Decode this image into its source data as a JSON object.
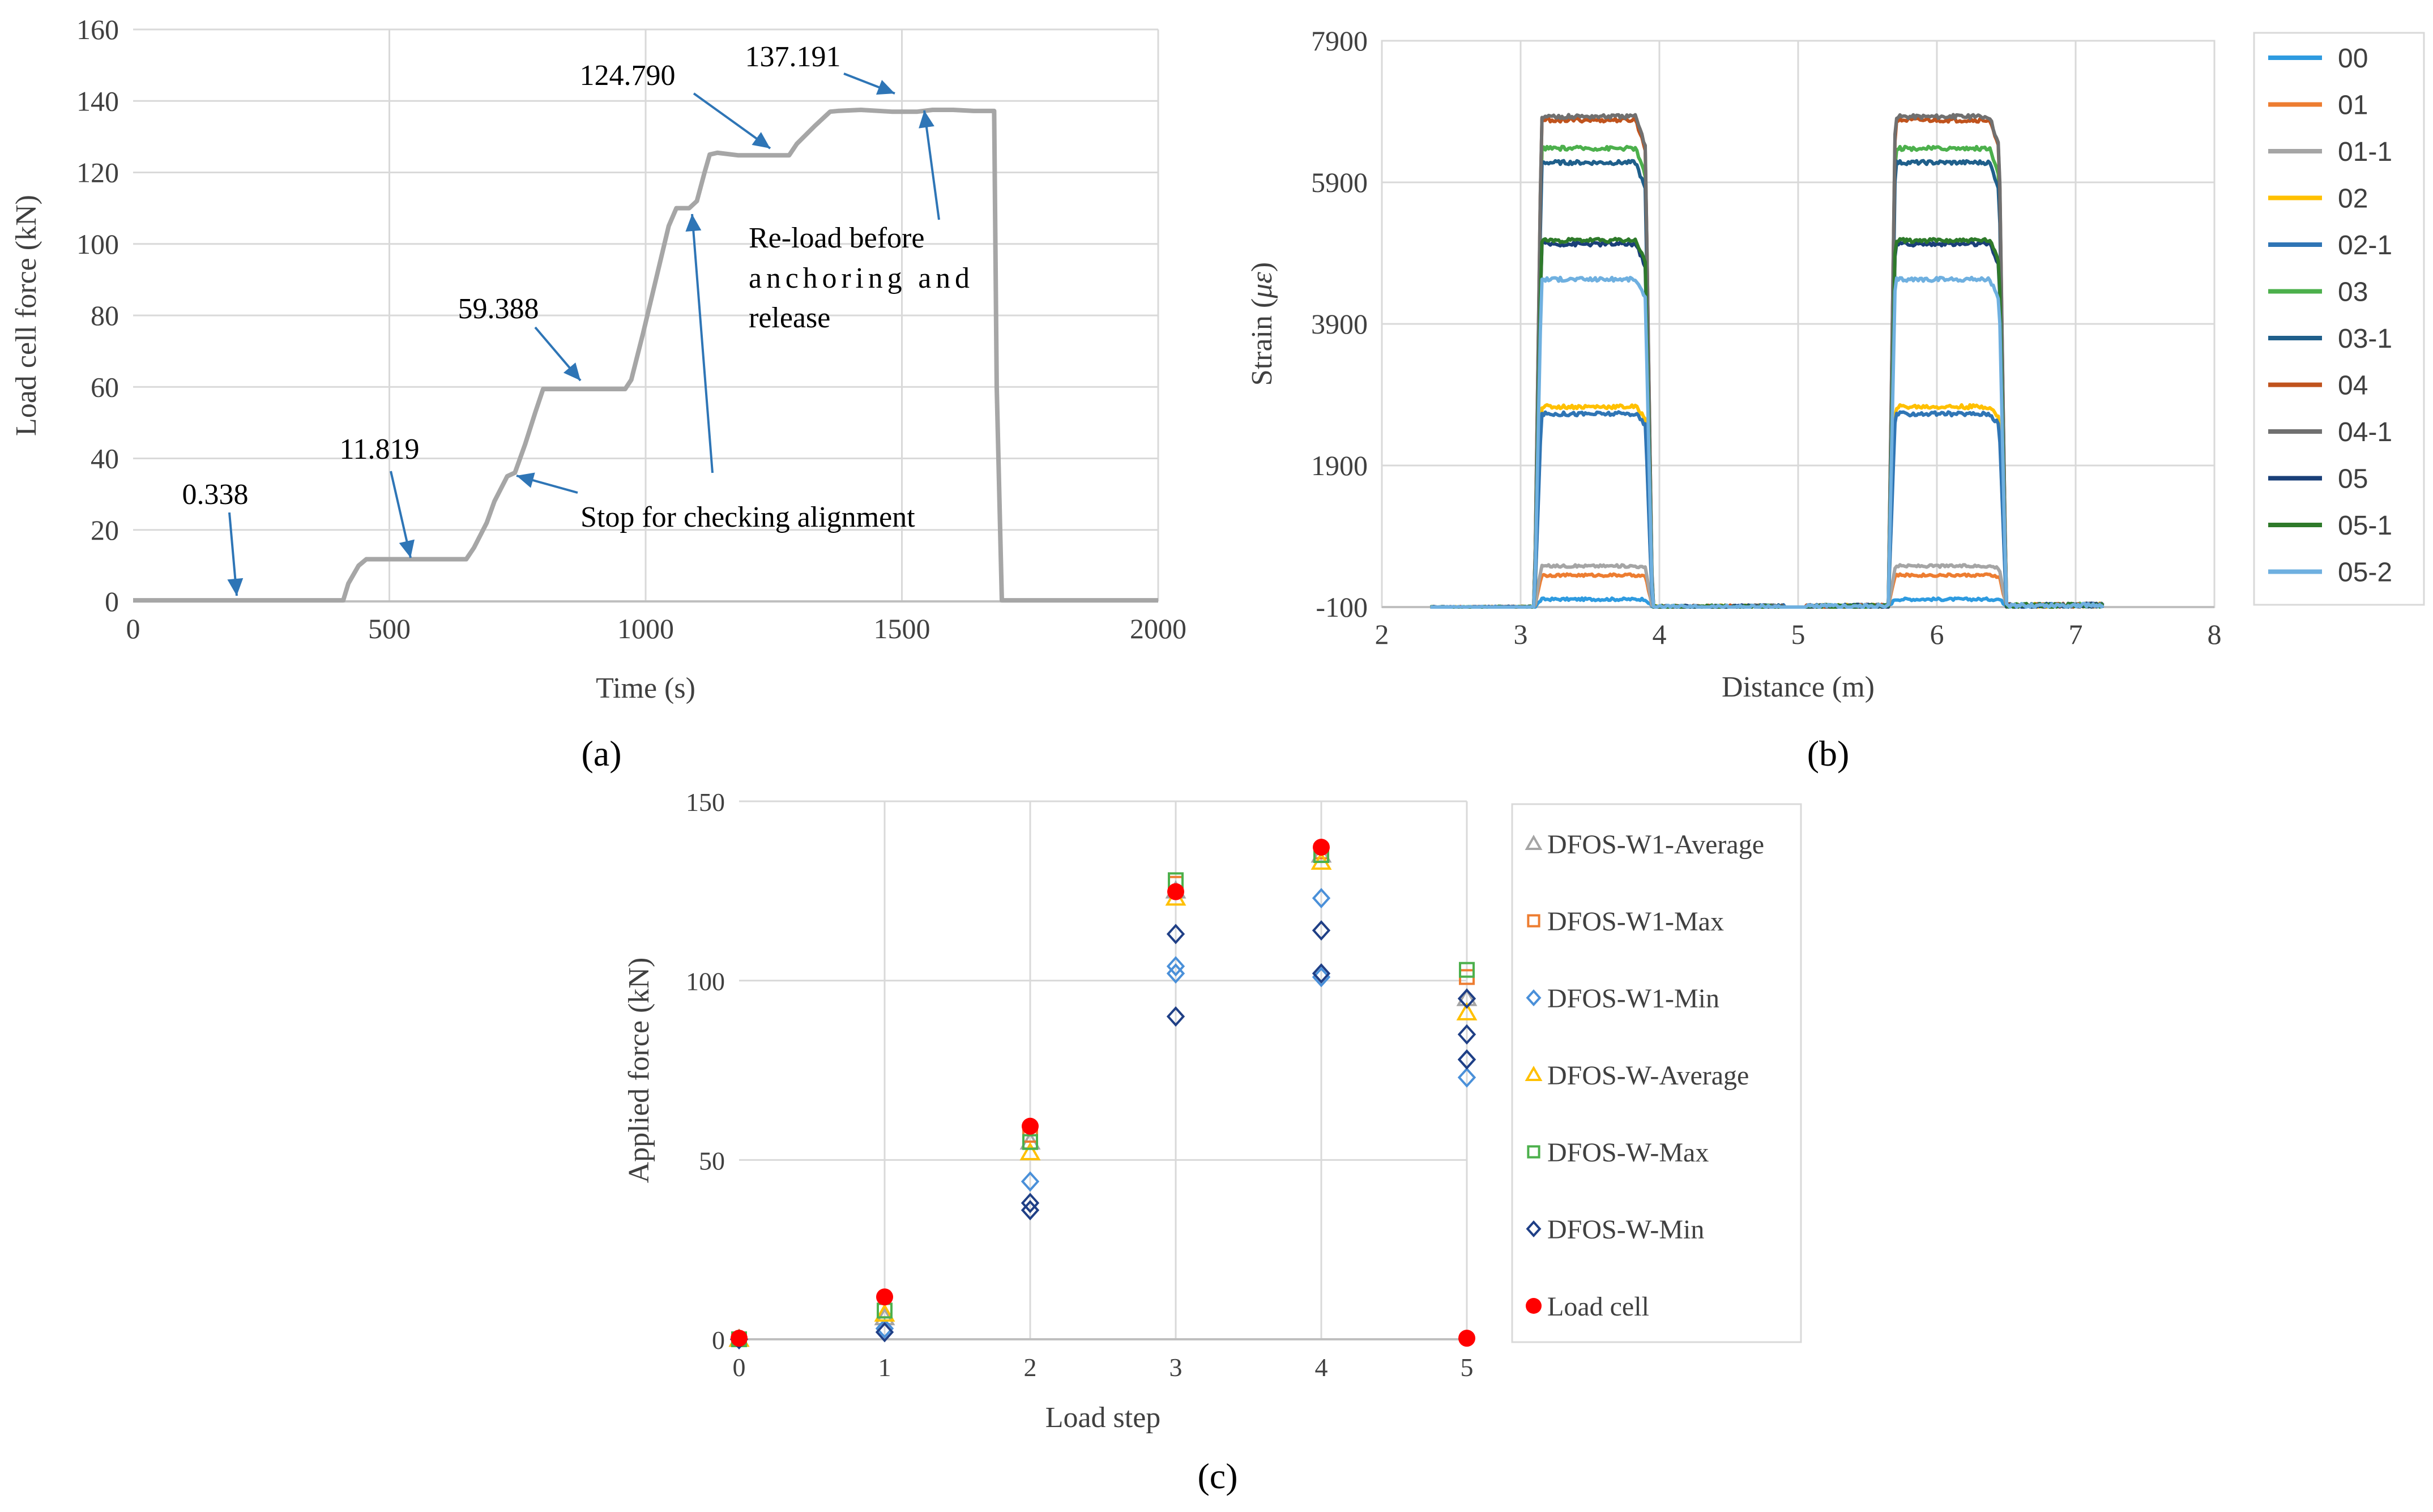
{
  "colors": {
    "grid": "#d9d9d9",
    "axis": "#bfbfbf",
    "text": "#404040",
    "gray_line": "#a6a6a6",
    "arrow": "#2e75b6",
    "legend_border": "#d9d9d9"
  },
  "chart_data": [
    {
      "id": "a",
      "type": "line",
      "panel_label": "(a)",
      "xlabel": "Time (s)",
      "ylabel": "Load cell force (kN)",
      "xlim": [
        0,
        2000
      ],
      "ylim": [
        0,
        160
      ],
      "xticks": [
        0,
        500,
        1000,
        1500,
        2000
      ],
      "yticks": [
        0,
        20,
        40,
        60,
        80,
        100,
        120,
        140,
        160
      ],
      "grid": true,
      "series": [
        {
          "name": "Load cell",
          "color": "#a6a6a6",
          "x": [
            0,
            410,
            420,
            440,
            455,
            650,
            665,
            690,
            705,
            730,
            745,
            765,
            785,
            800,
            960,
            972,
            995,
            1020,
            1045,
            1060,
            1070,
            1085,
            1100,
            1115,
            1125,
            1140,
            1180,
            1280,
            1295,
            1330,
            1360,
            1375,
            1420,
            1480,
            1530,
            1560,
            1600,
            1640,
            1680,
            1685,
            1695,
            2000
          ],
          "y": [
            0.3,
            0.3,
            5,
            10,
            11.8,
            11.8,
            15,
            22,
            28,
            35,
            36,
            44,
            53,
            59.4,
            59.4,
            62,
            75,
            90,
            105,
            110,
            110,
            110,
            112,
            120,
            125,
            125.5,
            124.8,
            124.8,
            128,
            133,
            137,
            137.2,
            137.5,
            137,
            137,
            137.5,
            137.5,
            137.2,
            137.2,
            60,
            0.3,
            0.3
          ]
        }
      ],
      "value_labels": [
        {
          "text": "0.338",
          "x": 200,
          "y": 0.338
        },
        {
          "text": "11.819",
          "x": 540,
          "y": 11.819
        },
        {
          "text": "59.388",
          "x": 880,
          "y": 59.388
        },
        {
          "text": "124.790",
          "x": 1170,
          "y": 124.79
        },
        {
          "text": "137.191",
          "x": 1420,
          "y": 137.191
        }
      ],
      "annotations": [
        {
          "text": "Stop for checking alignment",
          "targets": [
            [
              760,
              35
            ],
            [
              1100,
              110
            ]
          ]
        },
        {
          "text": "Re-load before",
          "line": 1
        },
        {
          "text": "anchoring and",
          "line": 2
        },
        {
          "text": "release",
          "line": 3
        }
      ],
      "reload_target": [
        1550,
        137.5
      ]
    },
    {
      "id": "b",
      "type": "line",
      "panel_label": "(b)",
      "xlabel": "Distance (m)",
      "ylabel": "Strain (με)",
      "ylabel_parts": [
        "Strain (",
        "με",
        ")"
      ],
      "xlim": [
        2,
        8
      ],
      "ylim": [
        -100,
        7900
      ],
      "xticks": [
        2,
        3,
        4,
        5,
        6,
        7,
        8
      ],
      "yticks": [
        -100,
        1900,
        3900,
        5900,
        7900
      ],
      "grid": true,
      "x_start": 2.35,
      "x_end": 7.2,
      "segments": [
        [
          3.1,
          3.95
        ],
        [
          5.65,
          6.5
        ]
      ],
      "series": [
        {
          "name": "00",
          "color": "#2e9be0",
          "plateau": -20
        },
        {
          "name": "01",
          "color": "#ed7d31",
          "plateau": 320
        },
        {
          "name": "01-1",
          "color": "#a5a5a5",
          "plateau": 450
        },
        {
          "name": "02",
          "color": "#ffc000",
          "plateau": 2700
        },
        {
          "name": "02-1",
          "color": "#2f75b5",
          "plateau": 2600
        },
        {
          "name": "03",
          "color": "#4cb04c",
          "plateau": 6350
        },
        {
          "name": "03-1",
          "color": "#1f5f8b",
          "plateau": 6150
        },
        {
          "name": "04",
          "color": "#c0531d",
          "plateau": 6750
        },
        {
          "name": "04-1",
          "color": "#707070",
          "plateau": 6800
        },
        {
          "name": "05",
          "color": "#1a3f78",
          "plateau": 5000
        },
        {
          "name": "05-1",
          "color": "#2e7a2a",
          "plateau": 5050
        },
        {
          "name": "05-2",
          "color": "#6fb0e0",
          "plateau": 4500
        }
      ]
    },
    {
      "id": "c",
      "type": "scatter",
      "panel_label": "(c)",
      "xlabel": "Load step",
      "ylabel": "Applied force (kN)",
      "xlim": [
        0,
        5
      ],
      "ylim": [
        0,
        150
      ],
      "xticks": [
        0,
        1,
        2,
        3,
        4,
        5
      ],
      "yticks": [
        0,
        50,
        100,
        150
      ],
      "grid": true,
      "series": [
        {
          "name": "DFOS-W1-Average",
          "marker": "triangle",
          "color": "#a5a5a5",
          "x": [
            0,
            1,
            2,
            3,
            4,
            5
          ],
          "y": [
            0,
            6,
            55,
            125,
            135,
            95
          ]
        },
        {
          "name": "DFOS-W1-Max",
          "marker": "square",
          "color": "#ed7d31",
          "x": [
            0,
            1,
            2,
            3,
            4,
            5
          ],
          "y": [
            0,
            8,
            57,
            127,
            136,
            101
          ]
        },
        {
          "name": "DFOS-W1-Min",
          "marker": "diamond",
          "color": "#4a90d9",
          "x": [
            0,
            1,
            2,
            3,
            3,
            4,
            4,
            5,
            5
          ],
          "y": [
            0,
            3,
            44,
            102,
            104,
            123,
            101,
            73,
            78
          ]
        },
        {
          "name": "DFOS-W-Average",
          "marker": "triangle",
          "color": "#ffc000",
          "x": [
            0,
            1,
            2,
            3,
            4,
            5
          ],
          "y": [
            0,
            7,
            52,
            123,
            133,
            91
          ]
        },
        {
          "name": "DFOS-W-Max",
          "marker": "square",
          "color": "#4cb04c",
          "x": [
            0,
            1,
            2,
            3,
            4,
            5
          ],
          "y": [
            0,
            8,
            55,
            128,
            135,
            103
          ]
        },
        {
          "name": "DFOS-W-Min",
          "marker": "diamond",
          "color": "#1f3f86",
          "x": [
            0,
            1,
            2,
            2,
            3,
            3,
            4,
            4,
            5,
            5,
            5
          ],
          "y": [
            0,
            2,
            36,
            38,
            90,
            113,
            114,
            102,
            78,
            85,
            95
          ]
        },
        {
          "name": "Load cell",
          "marker": "circle",
          "color": "#ff0000",
          "x": [
            0,
            1,
            2,
            3,
            4,
            5
          ],
          "y": [
            0.3,
            11.8,
            59.4,
            124.8,
            137.2,
            0.3
          ]
        }
      ]
    }
  ]
}
